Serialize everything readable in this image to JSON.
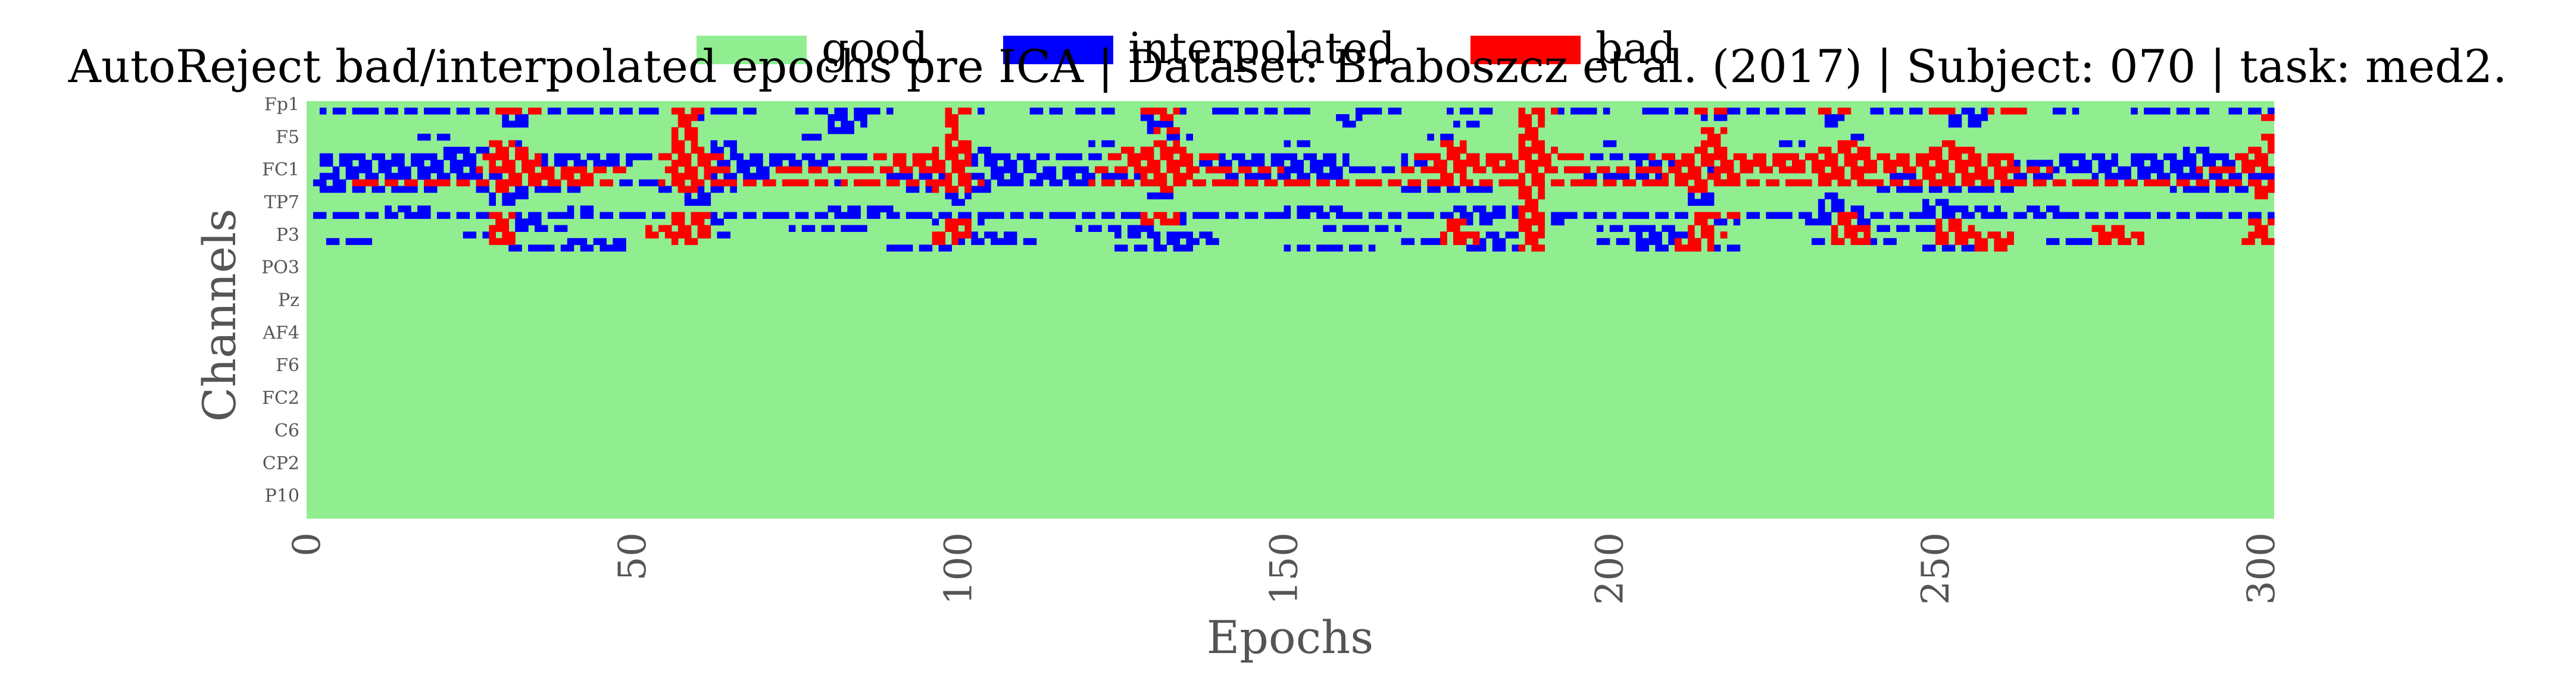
{
  "chart_data": {
    "type": "heatmap",
    "title": "AutoReject bad/interpolated epochs pre ICA | Dataset: Braboszcz et al. (2017) | Subject: 070 | task: med2.",
    "xlabel": "Epochs",
    "ylabel": "Channels",
    "xlim": [
      0,
      302
    ],
    "x_ticks": [
      0,
      50,
      100,
      150,
      200,
      250,
      300
    ],
    "y_tick_labels": [
      "Fp1",
      "F5",
      "FC1",
      "TP7",
      "P3",
      "PO3",
      "Pz",
      "AF4",
      "F6",
      "FC2",
      "C6",
      "CP2",
      "P10"
    ],
    "n_channels": 64,
    "n_epochs": 302,
    "y_tick_every": 5,
    "legend": {
      "placement": "top-center",
      "entries": [
        {
          "label": "good",
          "color": "#90ee90"
        },
        {
          "label": "interpolated",
          "color": "#0000ff"
        },
        {
          "label": "bad",
          "color": "#ff0000"
        }
      ]
    },
    "colors": {
      "good": "#90ee90",
      "interpolated": "#0000ff",
      "bad": "#ff0000"
    },
    "interpolated_segments": [
      [
        1,
        [
          2,
          54
        ],
        [
          62,
          69
        ],
        [
          75,
          90
        ],
        [
          100,
          104
        ],
        [
          110,
          116
        ],
        [
          118,
          125
        ],
        [
          127,
          136
        ],
        [
          138,
          155
        ],
        [
          160,
          168
        ],
        [
          175,
          183
        ],
        [
          190,
          200
        ],
        [
          205,
          212
        ],
        [
          218,
          230
        ],
        [
          240,
          260
        ],
        [
          268,
          272
        ],
        [
          280,
          292
        ],
        [
          295,
          302
        ]
      ],
      [
        2,
        [
          30,
          34
        ],
        [
          58,
          62
        ],
        [
          80,
          86
        ],
        [
          128,
          134
        ],
        [
          158,
          162
        ],
        [
          186,
          190
        ],
        [
          214,
          218
        ],
        [
          232,
          236
        ],
        [
          252,
          258
        ]
      ],
      [
        3,
        [
          30,
          34
        ],
        [
          80,
          86
        ],
        [
          128,
          134
        ],
        [
          158,
          162
        ],
        [
          176,
          180
        ],
        [
          232,
          236
        ],
        [
          252,
          258
        ]
      ],
      [
        4,
        [
          80,
          84
        ],
        [
          128,
          132
        ],
        [
          186,
          190
        ]
      ],
      [
        5,
        [
          16,
          22
        ],
        [
          76,
          80
        ],
        [
          132,
          136
        ],
        [
          172,
          176
        ],
        [
          236,
          240
        ]
      ],
      [
        6,
        [
          30,
          34
        ],
        [
          62,
          66
        ],
        [
          120,
          124
        ],
        [
          150,
          154
        ],
        [
          198,
          202
        ],
        [
          226,
          230
        ]
      ],
      [
        7,
        [
          20,
          28
        ],
        [
          62,
          66
        ],
        [
          100,
          106
        ],
        [
          128,
          134
        ],
        [
          188,
          192
        ],
        [
          212,
          216
        ],
        [
          248,
          252
        ],
        [
          288,
          292
        ]
      ],
      [
        8,
        [
          2,
          46
        ],
        [
          46,
          60
        ],
        [
          60,
          90
        ],
        [
          90,
          100
        ],
        [
          100,
          110
        ],
        [
          110,
          130
        ],
        [
          140,
          160
        ],
        [
          168,
          186
        ],
        [
          196,
          210
        ],
        [
          224,
          236
        ],
        [
          268,
          278
        ],
        [
          280,
          302
        ]
      ],
      [
        9,
        [
          2,
          26
        ],
        [
          32,
          50
        ],
        [
          62,
          80
        ],
        [
          100,
          112
        ],
        [
          132,
          160
        ],
        [
          168,
          186
        ],
        [
          204,
          230
        ],
        [
          262,
          278
        ],
        [
          280,
          302
        ]
      ],
      [
        10,
        [
          4,
          30
        ],
        [
          62,
          96
        ],
        [
          104,
          128
        ],
        [
          136,
          168
        ],
        [
          180,
          200
        ],
        [
          212,
          240
        ],
        [
          268,
          302
        ]
      ],
      [
        11,
        [
          2,
          40
        ],
        [
          60,
          72
        ],
        [
          88,
          110
        ],
        [
          112,
          128
        ],
        [
          140,
          160
        ],
        [
          196,
          218
        ],
        [
          242,
          268
        ],
        [
          274,
          302
        ]
      ],
      [
        12,
        [
          1,
          302
        ]
      ],
      [
        13,
        [
          2,
          20
        ],
        [
          26,
          42
        ],
        [
          54,
          66
        ],
        [
          92,
          106
        ],
        [
          168,
          182
        ],
        [
          240,
          262
        ],
        [
          286,
          302
        ]
      ],
      [
        14,
        [
          28,
          34
        ],
        [
          58,
          62
        ],
        [
          98,
          102
        ],
        [
          128,
          134
        ],
        [
          186,
          190
        ],
        [
          212,
          216
        ],
        [
          232,
          236
        ]
      ],
      [
        15,
        [
          28,
          32
        ],
        [
          58,
          62
        ],
        [
          98,
          102
        ],
        [
          186,
          190
        ],
        [
          212,
          216
        ],
        [
          232,
          236
        ],
        [
          248,
          252
        ]
      ],
      [
        16,
        [
          12,
          20
        ],
        [
          40,
          44
        ],
        [
          80,
          90
        ],
        [
          150,
          160
        ],
        [
          176,
          186
        ],
        [
          232,
          240
        ],
        [
          248,
          260
        ],
        [
          264,
          270
        ]
      ],
      [
        17,
        [
          1,
          302
        ]
      ],
      [
        18,
        [
          28,
          36
        ],
        [
          58,
          64
        ],
        [
          96,
          104
        ],
        [
          128,
          136
        ],
        [
          176,
          182
        ],
        [
          186,
          194
        ],
        [
          212,
          220
        ],
        [
          230,
          240
        ]
      ],
      [
        19,
        [
          30,
          40
        ],
        [
          74,
          86
        ],
        [
          118,
          130
        ],
        [
          156,
          168
        ],
        [
          198,
          210
        ],
        [
          240,
          252
        ]
      ],
      [
        20,
        [
          24,
          30
        ],
        [
          56,
          66
        ],
        [
          100,
          110
        ],
        [
          124,
          140
        ],
        [
          174,
          186
        ],
        [
          204,
          218
        ],
        [
          252,
          262
        ]
      ],
      [
        21,
        [
          2,
          10
        ],
        [
          40,
          50
        ],
        [
          100,
          112
        ],
        [
          130,
          140
        ],
        [
          168,
          184
        ],
        [
          198,
          214
        ],
        [
          230,
          244
        ],
        [
          266,
          282
        ]
      ],
      [
        22,
        [
          30,
          50
        ],
        [
          88,
          100
        ],
        [
          124,
          136
        ],
        [
          150,
          164
        ],
        [
          178,
          190
        ],
        [
          204,
          220
        ],
        [
          248,
          262
        ]
      ]
    ],
    "bad_segments": [
      [
        1,
        [
          28,
          36
        ],
        [
          56,
          62
        ],
        [
          98,
          102
        ],
        [
          128,
          134
        ],
        [
          186,
          192
        ],
        [
          212,
          218
        ],
        [
          232,
          238
        ],
        [
          248,
          254
        ],
        [
          258,
          264
        ]
      ],
      [
        2,
        [
          56,
          60
        ],
        [
          98,
          100
        ],
        [
          130,
          134
        ],
        [
          186,
          190
        ],
        [
          300,
          302
        ]
      ],
      [
        3,
        [
          56,
          60
        ],
        [
          98,
          100
        ],
        [
          186,
          190
        ]
      ],
      [
        4,
        [
          56,
          60
        ],
        [
          98,
          100
        ],
        [
          130,
          134
        ],
        [
          186,
          190
        ],
        [
          214,
          218
        ]
      ],
      [
        5,
        [
          56,
          60
        ],
        [
          98,
          100
        ],
        [
          186,
          190
        ],
        [
          214,
          218
        ],
        [
          300,
          302
        ]
      ],
      [
        6,
        [
          28,
          32
        ],
        [
          56,
          60
        ],
        [
          98,
          102
        ],
        [
          130,
          134
        ],
        [
          174,
          178
        ],
        [
          186,
          190
        ],
        [
          214,
          218
        ],
        [
          234,
          238
        ],
        [
          250,
          254
        ],
        [
          300,
          302
        ]
      ],
      [
        7,
        [
          28,
          34
        ],
        [
          56,
          62
        ],
        [
          96,
          102
        ],
        [
          124,
          136
        ],
        [
          174,
          178
        ],
        [
          186,
          192
        ],
        [
          212,
          218
        ],
        [
          232,
          240
        ],
        [
          248,
          256
        ],
        [
          298,
          302
        ]
      ],
      [
        8,
        [
          26,
          36
        ],
        [
          54,
          64
        ],
        [
          86,
          102
        ],
        [
          122,
          140
        ],
        [
          170,
          196
        ],
        [
          206,
          262
        ],
        [
          296,
          302
        ]
      ],
      [
        9,
        [
          28,
          36
        ],
        [
          56,
          62
        ],
        [
          90,
          102
        ],
        [
          126,
          136
        ],
        [
          172,
          192
        ],
        [
          210,
          262
        ],
        [
          296,
          302
        ]
      ],
      [
        10,
        [
          26,
          50
        ],
        [
          54,
          66
        ],
        [
          72,
          102
        ],
        [
          120,
          150
        ],
        [
          168,
          214
        ],
        [
          216,
          268
        ],
        [
          290,
          302
        ]
      ],
      [
        11,
        [
          30,
          44
        ],
        [
          56,
          62
        ],
        [
          98,
          102
        ],
        [
          128,
          136
        ],
        [
          174,
          178
        ],
        [
          186,
          190
        ],
        [
          208,
          220
        ],
        [
          232,
          240
        ],
        [
          248,
          262
        ]
      ],
      [
        12,
        [
          6,
          48
        ],
        [
          54,
          80
        ],
        [
          82,
          104
        ],
        [
          120,
          200
        ],
        [
          200,
          270
        ],
        [
          270,
          302
        ]
      ],
      [
        13,
        [
          28,
          32
        ],
        [
          56,
          60
        ],
        [
          96,
          102
        ],
        [
          130,
          134
        ],
        [
          186,
          190
        ],
        [
          212,
          216
        ],
        [
          298,
          302
        ]
      ],
      [
        14,
        [
          186,
          190
        ],
        [
          298,
          302
        ]
      ],
      [
        15,
        [
          186,
          190
        ]
      ],
      [
        16,
        [
          186,
          190
        ]
      ],
      [
        17,
        [
          28,
          32
        ],
        [
          56,
          62
        ],
        [
          128,
          134
        ],
        [
          186,
          190
        ],
        [
          212,
          220
        ],
        [
          234,
          238
        ]
      ],
      [
        18,
        [
          28,
          32
        ],
        [
          56,
          62
        ],
        [
          98,
          102
        ],
        [
          128,
          134
        ],
        [
          174,
          178
        ],
        [
          186,
          190
        ],
        [
          212,
          216
        ],
        [
          234,
          238
        ],
        [
          250,
          254
        ],
        [
          298,
          302
        ]
      ],
      [
        19,
        [
          28,
          32
        ],
        [
          52,
          62
        ],
        [
          98,
          102
        ],
        [
          174,
          178
        ],
        [
          186,
          190
        ],
        [
          212,
          216
        ],
        [
          234,
          240
        ],
        [
          250,
          256
        ],
        [
          274,
          280
        ],
        [
          298,
          302
        ]
      ],
      [
        20,
        [
          28,
          32
        ],
        [
          52,
          62
        ],
        [
          96,
          102
        ],
        [
          174,
          180
        ],
        [
          186,
          190
        ],
        [
          212,
          218
        ],
        [
          234,
          240
        ],
        [
          250,
          262
        ],
        [
          274,
          282
        ],
        [
          298,
          302
        ]
      ],
      [
        21,
        [
          28,
          32
        ],
        [
          56,
          60
        ],
        [
          96,
          100
        ],
        [
          174,
          180
        ],
        [
          186,
          190
        ],
        [
          210,
          216
        ],
        [
          234,
          240
        ],
        [
          250,
          262
        ],
        [
          274,
          282
        ],
        [
          296,
          302
        ]
      ],
      [
        22,
        [
          186,
          190
        ],
        [
          210,
          216
        ],
        [
          256,
          262
        ]
      ]
    ]
  }
}
